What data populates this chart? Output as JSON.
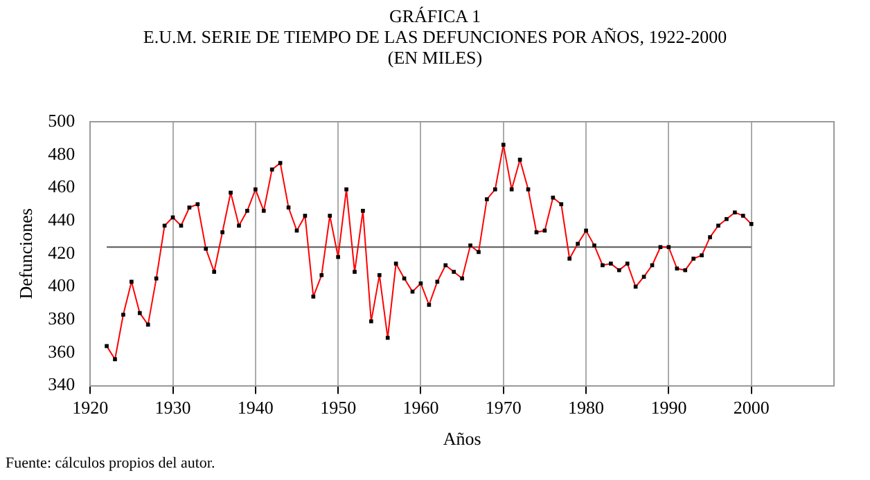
{
  "chart_data": {
    "type": "line",
    "title": "GRÁFICA 1",
    "subtitle": "E.U.M. SERIE DE TIEMPO DE LAS DEFUNCIONES POR AÑOS, 1922-2000\n(EN MILES)",
    "xlabel": "Años",
    "ylabel": "Defunciones",
    "annotations": [
      "Fuente: cálculos propios del autor."
    ],
    "x": [
      1922,
      1923,
      1924,
      1925,
      1926,
      1927,
      1928,
      1929,
      1930,
      1931,
      1932,
      1933,
      1934,
      1935,
      1936,
      1937,
      1938,
      1939,
      1940,
      1941,
      1942,
      1943,
      1944,
      1945,
      1946,
      1947,
      1948,
      1949,
      1950,
      1951,
      1952,
      1953,
      1954,
      1955,
      1956,
      1957,
      1958,
      1959,
      1960,
      1961,
      1962,
      1963,
      1964,
      1965,
      1966,
      1967,
      1968,
      1969,
      1970,
      1971,
      1972,
      1973,
      1974,
      1975,
      1976,
      1977,
      1978,
      1979,
      1980,
      1981,
      1982,
      1983,
      1984,
      1985,
      1986,
      1987,
      1988,
      1989,
      1990,
      1991,
      1992,
      1993,
      1994,
      1995,
      1996,
      1997,
      1998,
      1999,
      2000
    ],
    "series": [
      {
        "color": "#ff0000",
        "values": [
          364,
          356,
          383,
          403,
          384,
          377,
          405,
          437,
          442,
          437,
          448,
          450,
          423,
          409,
          433,
          457,
          437,
          446,
          459,
          446,
          471,
          475,
          448,
          434,
          443,
          394,
          407,
          443,
          418,
          459,
          409,
          446,
          379,
          407,
          369,
          414,
          405,
          397,
          402,
          389,
          403,
          413,
          409,
          405,
          425,
          421,
          453,
          459,
          486,
          459,
          477,
          459,
          433,
          434,
          454,
          450,
          417,
          426,
          434,
          425,
          413,
          414,
          410,
          414,
          400,
          406,
          413,
          424,
          424,
          411,
          410,
          417,
          419,
          430,
          437,
          441,
          445,
          443,
          438
        ]
      }
    ],
    "xlim": [
      1920,
      2010
    ],
    "xticks": [
      1920,
      1930,
      1940,
      1950,
      1960,
      1970,
      1980,
      1990,
      2000
    ],
    "ylim": [
      340,
      500
    ],
    "yticks": [
      340,
      360,
      380,
      400,
      420,
      440,
      460,
      480,
      500
    ],
    "ref_lines": [
      {
        "axis": "y",
        "value": 424,
        "color": "#555555"
      }
    ],
    "grid": "x",
    "marker": "square",
    "line_style": "solid",
    "legend": false
  }
}
